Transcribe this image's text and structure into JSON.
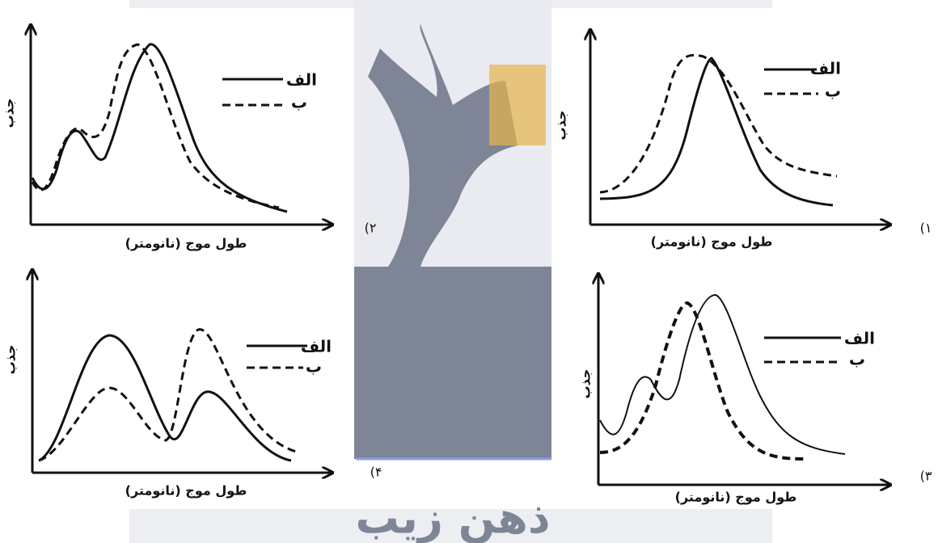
{
  "panels": [
    {
      "number": "۱)",
      "y_label": "جذب",
      "x_label": "طول موج (نانومتر)",
      "legend": [
        "الف",
        "ب"
      ]
    },
    {
      "number": "۲)",
      "y_label": "جذب",
      "x_label": "طول موج (نانومتر)",
      "legend": [
        "الف",
        "ب"
      ]
    },
    {
      "number": "۳)",
      "y_label": "جذب",
      "x_label": "طول موج (نانومتر)",
      "legend": [
        "الف",
        "ب"
      ]
    },
    {
      "number": "۴)",
      "y_label": "جذب",
      "x_label": "طول موج (نانومتر)",
      "legend": [
        "الف",
        "ب"
      ]
    }
  ],
  "watermark": "ذهن زیب"
}
